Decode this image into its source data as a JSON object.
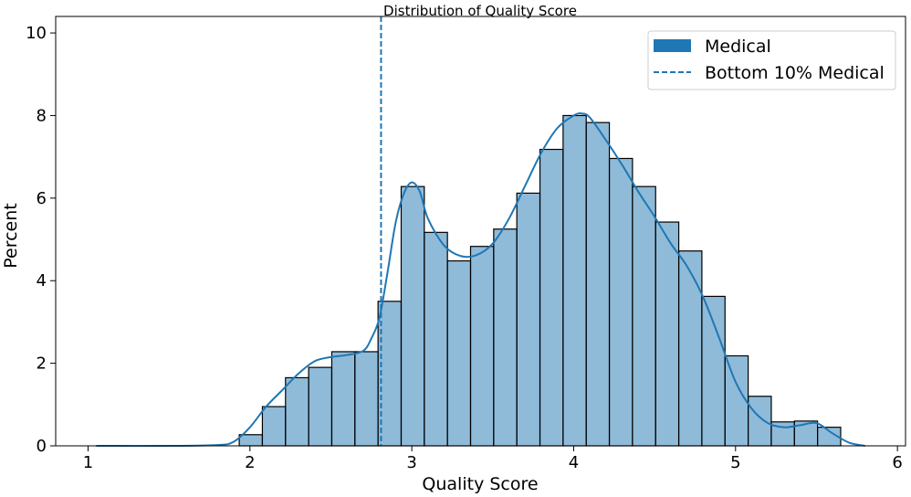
{
  "chart_data": {
    "type": "bar",
    "title": "Distribution of Quality Score",
    "xlabel": "Quality Score",
    "ylabel": "Percent",
    "xlim": [
      0.8,
      6.05
    ],
    "ylim": [
      0,
      10.4
    ],
    "xticks": [
      1,
      2,
      3,
      4,
      5,
      6
    ],
    "yticks": [
      0,
      2,
      4,
      6,
      8,
      10
    ],
    "grid": false,
    "legend_position": "top-right",
    "bin_start": 1.934,
    "bin_width": 0.1429,
    "series": [
      {
        "name": "Medical",
        "values": [
          0.27,
          0.95,
          1.65,
          1.9,
          2.28,
          2.28,
          3.5,
          6.28,
          5.17,
          4.48,
          4.83,
          5.25,
          6.12,
          7.18,
          8.0,
          7.83,
          6.96,
          6.28,
          5.42,
          4.72,
          3.62,
          2.18,
          1.2,
          0.58,
          0.6,
          0.45
        ],
        "color": "#1f77b4"
      }
    ],
    "kde": {
      "x": [
        1.05,
        1.5,
        1.8,
        1.9,
        2.0,
        2.1,
        2.2,
        2.3,
        2.4,
        2.5,
        2.6,
        2.7,
        2.75,
        2.8,
        2.85,
        2.9,
        2.95,
        3.0,
        3.05,
        3.1,
        3.2,
        3.3,
        3.4,
        3.5,
        3.6,
        3.7,
        3.8,
        3.9,
        4.0,
        4.05,
        4.1,
        4.2,
        4.3,
        4.4,
        4.5,
        4.6,
        4.7,
        4.8,
        4.9,
        5.0,
        5.1,
        5.2,
        5.3,
        5.4,
        5.5,
        5.6,
        5.7,
        5.8
      ],
      "y": [
        0.0,
        0.0,
        0.02,
        0.1,
        0.45,
        0.95,
        1.35,
        1.75,
        2.05,
        2.15,
        2.2,
        2.3,
        2.6,
        3.1,
        4.2,
        5.4,
        6.1,
        6.38,
        6.15,
        5.5,
        4.85,
        4.6,
        4.62,
        4.9,
        5.5,
        6.3,
        7.1,
        7.7,
        8.0,
        8.05,
        7.95,
        7.4,
        6.8,
        6.15,
        5.55,
        4.9,
        4.35,
        3.6,
        2.6,
        1.55,
        0.9,
        0.55,
        0.45,
        0.5,
        0.55,
        0.3,
        0.08,
        0.0
      ]
    },
    "reference_line": {
      "label": "Bottom 10% Medical",
      "x": 2.81,
      "style": "dashed",
      "color": "#1f77b4"
    }
  }
}
